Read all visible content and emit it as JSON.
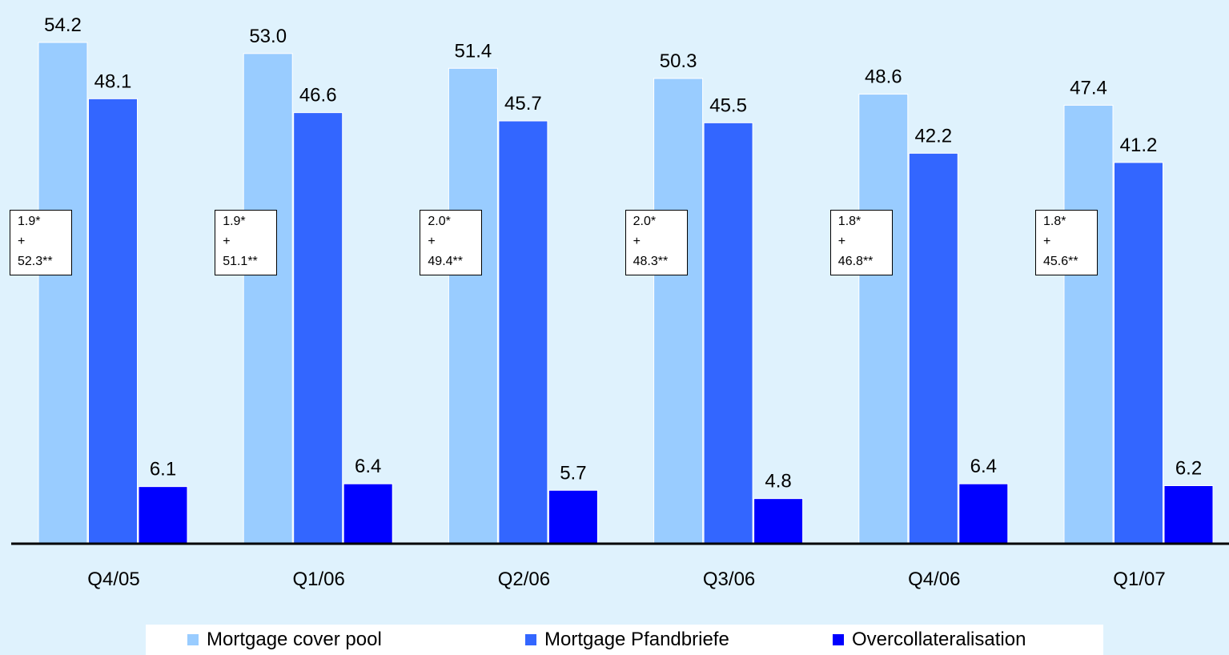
{
  "chart_data": {
    "type": "bar",
    "categories": [
      "Q4/05",
      "Q1/06",
      "Q2/06",
      "Q3/06",
      "Q4/06",
      "Q1/07"
    ],
    "series": [
      {
        "name": "Mortgage cover pool",
        "values": [
          54.2,
          53.0,
          51.4,
          50.3,
          48.6,
          47.4
        ],
        "labels": [
          "54.2",
          "53.0",
          "51.4",
          "50.3",
          "48.6",
          "47.4"
        ],
        "color": "#99ccff"
      },
      {
        "name": "Mortgage Pfandbriefe",
        "values": [
          48.1,
          46.6,
          45.7,
          45.5,
          42.2,
          41.2
        ],
        "labels": [
          "48.1",
          "46.6",
          "45.7",
          "45.5",
          "42.2",
          "41.2"
        ],
        "color": "#3366ff"
      },
      {
        "name": "Overcollateralisation",
        "values": [
          6.1,
          6.4,
          5.7,
          4.8,
          6.4,
          6.2
        ],
        "labels": [
          "6.1",
          "6.4",
          "5.7",
          "4.8",
          "6.4",
          "6.2"
        ],
        "color": "#0000ff"
      }
    ],
    "annotations": [
      {
        "line1": "1.9*",
        "line2": "+",
        "line3": "52.3**"
      },
      {
        "line1": "1.9*",
        "line2": "+",
        "line3": "51.1**"
      },
      {
        "line1": "2.0*",
        "line2": "+",
        "line3": "49.4**"
      },
      {
        "line1": "2.0*",
        "line2": "+",
        "line3": "48.3**"
      },
      {
        "line1": "1.8*",
        "line2": "+",
        "line3": "46.8**"
      },
      {
        "line1": "1.8*",
        "line2": "+",
        "line3": "45.6**"
      }
    ],
    "title": "",
    "xlabel": "",
    "ylabel": "",
    "ylim": [
      0,
      54.2
    ],
    "grid": false,
    "legend_position": "bottom",
    "background_color": "#dff2fd",
    "axis_color": "#000000"
  }
}
